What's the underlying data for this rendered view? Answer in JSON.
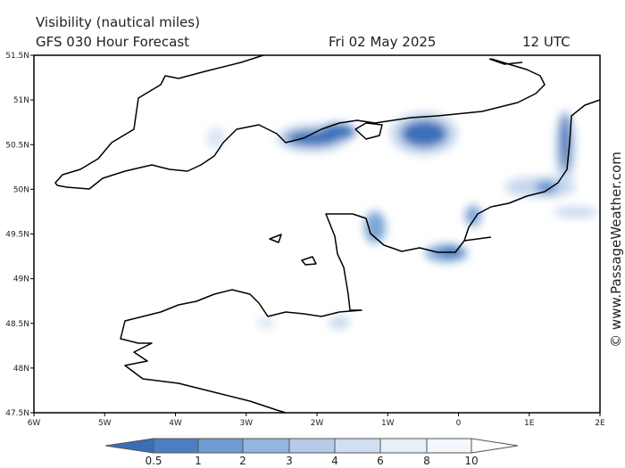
{
  "header": {
    "title": "Visibility (nautical miles)",
    "subtitle": "GFS 030 Hour Forecast",
    "date": "Fri 02 May 2025",
    "time": "12 UTC"
  },
  "map": {
    "lat_labels": [
      "51.5N",
      "51N",
      "50.5N",
      "50N",
      "49.5N",
      "49N",
      "48.5N",
      "48N",
      "47.5N"
    ],
    "lon_labels": [
      "6W",
      "5W",
      "4W",
      "3W",
      "2W",
      "1W",
      "0",
      "1E",
      "2E"
    ]
  },
  "colorbar": {
    "labels": [
      "0.5",
      "1",
      "2",
      "3",
      "4",
      "6",
      "8",
      "10"
    ]
  },
  "credit": "© www.PassageWeather.com"
}
